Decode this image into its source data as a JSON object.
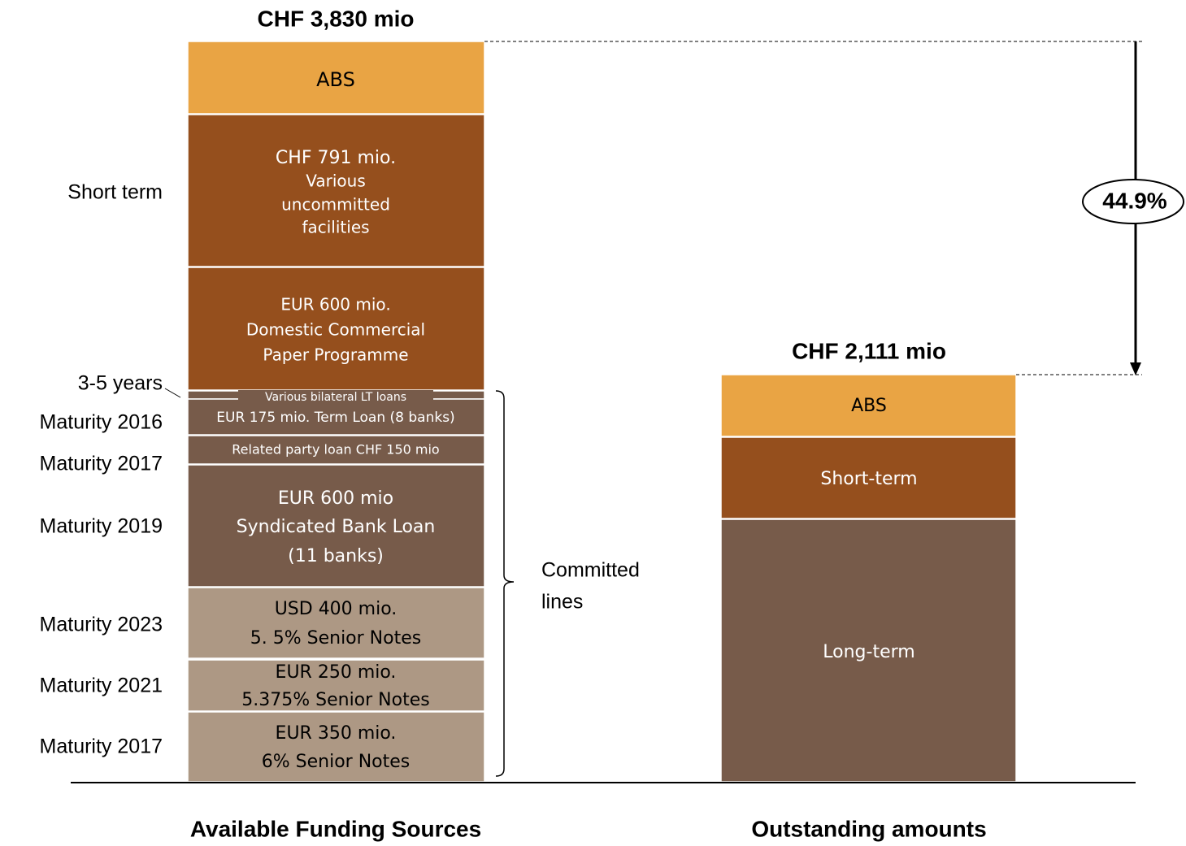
{
  "left_bar": {
    "total": "CHF 3,830 mio",
    "caption": "Available Funding Sources",
    "segments": [
      {
        "lines": [
          "ABS"
        ]
      },
      {
        "lines": [
          "CHF 791 mio.",
          "Various",
          "uncommitted",
          "facilities"
        ]
      },
      {
        "lines": [
          "EUR 600 mio.",
          "Domestic Commercial",
          "Paper Programme"
        ]
      },
      {
        "lines": [
          "Various bilateral LT loans"
        ]
      },
      {
        "lines": [
          "EUR 175 mio. Term Loan (8 banks)"
        ]
      },
      {
        "lines": [
          "Related party loan CHF 150 mio"
        ]
      },
      {
        "lines": [
          "EUR 600 mio",
          "Syndicated Bank Loan",
          "(11 banks)"
        ]
      },
      {
        "lines": [
          "USD 400 mio.",
          "5. 5% Senior Notes"
        ]
      },
      {
        "lines": [
          "EUR 250 mio.",
          "5.375% Senior Notes"
        ]
      },
      {
        "lines": [
          "EUR 350 mio.",
          "6% Senior Notes"
        ]
      }
    ]
  },
  "side_labels": [
    "Short term",
    "3-5 years",
    "Maturity 2016",
    "Maturity 2017",
    "Maturity 2019",
    "Maturity 2023",
    "Maturity 2021",
    "Maturity 2017"
  ],
  "brace_label": [
    "Committed",
    "lines"
  ],
  "right_bar": {
    "total": "CHF 2,111 mio",
    "caption": "Outstanding amounts",
    "segments": [
      "ABS",
      "Short-term",
      "Long-term"
    ]
  },
  "difference": "44.9%"
}
